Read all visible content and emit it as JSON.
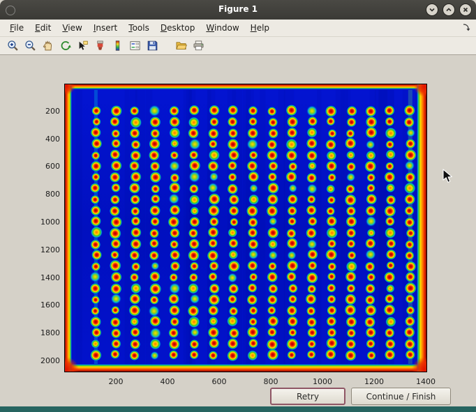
{
  "window": {
    "title": "Figure 1"
  },
  "titlebar": {
    "controls": [
      {
        "name": "shade-window",
        "icon": "chevron-down-icon"
      },
      {
        "name": "unshade-window",
        "icon": "chevron-up-icon"
      },
      {
        "name": "close-window",
        "icon": "close-icon"
      }
    ]
  },
  "menubar": {
    "items": [
      "File",
      "Edit",
      "View",
      "Insert",
      "Tools",
      "Desktop",
      "Window",
      "Help"
    ]
  },
  "toolbar": {
    "icons": [
      "zoom-in",
      "zoom-out",
      "pan",
      "rotate-3d",
      "data-cursor",
      "brush",
      "insert-colorbar",
      "insert-legend",
      "save-figure",
      "open-file",
      "print-figure"
    ],
    "group_break_after_index": 8
  },
  "buttons": {
    "retry": "Retry",
    "continue": "Continue / Finish"
  },
  "colors": {
    "titlebar_bg": "#3b3a36",
    "chrome_bg": "#edeae3",
    "figure_bg": "#d5d1c8",
    "focus_border": "#8f5665",
    "taskbar_teal": "#266460",
    "plot_background": "#0213cf"
  },
  "chart_data": {
    "type": "heatmap",
    "title": "",
    "xlabel": "",
    "ylabel": "",
    "xlim": [
      0,
      1400
    ],
    "ylim": [
      0,
      2070
    ],
    "y_axis_direction": "down",
    "x_ticks": [
      200,
      400,
      600,
      800,
      1000,
      1200,
      1400
    ],
    "y_ticks": [
      200,
      400,
      600,
      800,
      1000,
      1200,
      1400,
      1600,
      1800,
      2000
    ],
    "colormap": "jet",
    "background_color": "#0213cf",
    "description": "Intensity image (jet colormap) of an array plate: regular grid of hot red/yellow spots with green-cyan halos on a deep blue background; plate edges saturate to orange/red along all four borders",
    "grid": {
      "cols": 17,
      "rows": 23,
      "x_start": 120,
      "x_step": 76,
      "y_start": 190,
      "y_step": 80
    },
    "edge_band_colors": [
      "#8c0e00",
      "#f03000",
      "#ff9400",
      "#ffdc00",
      "#50c818",
      "#00b0d8"
    ]
  }
}
